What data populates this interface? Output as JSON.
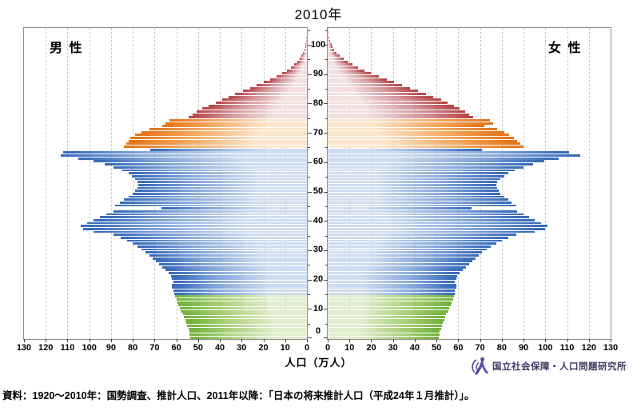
{
  "title": "2010年",
  "panel_labels": {
    "male": "男 性",
    "female": "女 性"
  },
  "axis": {
    "x_label": "人口（万人）",
    "x_ticks": [
      0,
      10,
      20,
      30,
      40,
      50,
      60,
      70,
      80,
      90,
      100,
      110,
      120,
      130
    ],
    "x_max": 130,
    "age_ticks": [
      0,
      10,
      20,
      30,
      40,
      50,
      60,
      70,
      80,
      90,
      100
    ],
    "age_minor_step": 5,
    "age_max": 105
  },
  "source": "資料：1920～2010年：国勢調査、推計人口、2011年以降：「日本の将来推計人口（平成24年１月推計）」。",
  "logo": {
    "text": "国立社会保障・人口問題研究所",
    "color": "#5b4aa4"
  },
  "colors": {
    "bands": {
      "green": {
        "light": "#e1edcd",
        "mid": "#a8cf76",
        "dark": "#72b43c"
      },
      "blue": {
        "light": "#cfddf0",
        "mid": "#82a5d8",
        "dark": "#3a6cbb"
      },
      "orange": {
        "light": "#fce7cd",
        "mid": "#f3a760",
        "dark": "#e5771b"
      },
      "red": {
        "light": "#f3e1e1",
        "mid": "#d29298",
        "dark": "#b94849"
      }
    },
    "gridline": "#c9c9c9",
    "frame": "#8f8f8f"
  },
  "chart_data": {
    "type": "bar",
    "subtype": "population-pyramid",
    "title": "2010年",
    "xlabel": "人口（万人）",
    "x_range_each_side": [
      0,
      130
    ],
    "age_range": [
      0,
      105
    ],
    "grid": true,
    "color_bands": [
      {
        "ages": "0-14",
        "band": "green"
      },
      {
        "ages": "15-64",
        "band": "blue"
      },
      {
        "ages": "65-74",
        "band": "orange"
      },
      {
        "ages": "75+",
        "band": "red"
      }
    ],
    "unit": "万人 per single year of age",
    "series": [
      {
        "name": "男性",
        "side": "left",
        "values": [
          53.5,
          54,
          54,
          54.5,
          55,
          55.5,
          56,
          56.5,
          57,
          58,
          58.5,
          59,
          59.5,
          60,
          60.5,
          61,
          61.5,
          62,
          62,
          61.5,
          62,
          62.5,
          63.5,
          65,
          66.5,
          68,
          69.5,
          71,
          72.5,
          74,
          76,
          78,
          80,
          82.5,
          85.5,
          89,
          98,
          103,
          104,
          101,
          98,
          95,
          92,
          89,
          67,
          88,
          86,
          84,
          82,
          80,
          79,
          78,
          77.5,
          78,
          79,
          80.5,
          82,
          85,
          89,
          93,
          98,
          105,
          113,
          112,
          72,
          84,
          83,
          82,
          81,
          79,
          76,
          72.5,
          66.5,
          65,
          63,
          54.5,
          52.5,
          50.5,
          48,
          45,
          42,
          39,
          36,
          33,
          29.5,
          26,
          23,
          20,
          17,
          14,
          11.5,
          9.3,
          7.4,
          5.8,
          4.4,
          3.3,
          2.4,
          1.7,
          1.2,
          0.85,
          0.6,
          0.4,
          0.25,
          0.15,
          0.1,
          0.12
        ]
      },
      {
        "name": "女性",
        "side": "right",
        "values": [
          51,
          51.5,
          51.5,
          52,
          52.5,
          53,
          53.5,
          54,
          54.5,
          55.5,
          56,
          56.5,
          57,
          57.5,
          58,
          58.5,
          58.5,
          59,
          59,
          58.5,
          59,
          59.5,
          60.5,
          62,
          63.5,
          65,
          66.5,
          68,
          69.5,
          71,
          73,
          75,
          77.5,
          80,
          83,
          86.5,
          95,
          100,
          101,
          98,
          95,
          92.5,
          90,
          87,
          66,
          86.5,
          84.5,
          83,
          81,
          79.5,
          78.5,
          78,
          77.5,
          78,
          79.5,
          81,
          83,
          86,
          90,
          94.5,
          99.5,
          106,
          116,
          111,
          71,
          90,
          88.5,
          87,
          85.5,
          83.5,
          81,
          78,
          72,
          76,
          74.5,
          67,
          65,
          63,
          60.5,
          58,
          55,
          52,
          48.5,
          45,
          41.5,
          38,
          34,
          30.5,
          27,
          23.5,
          20,
          17,
          14,
          11.5,
          9.2,
          7.3,
          5.6,
          4.2,
          3.1,
          2.3,
          1.7,
          1.2,
          0.8,
          0.5,
          0.35,
          0.4
        ]
      }
    ]
  }
}
